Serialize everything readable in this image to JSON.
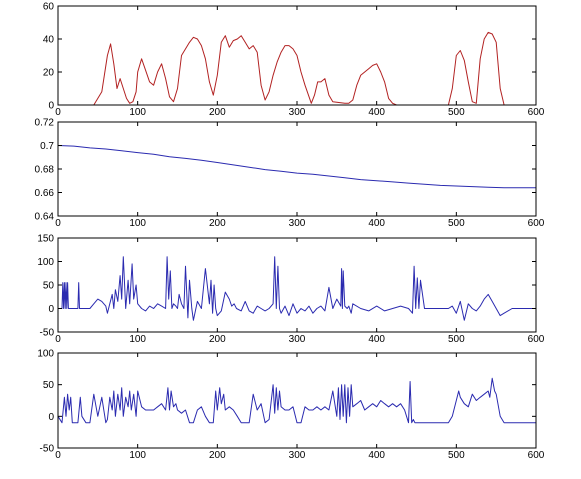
{
  "chart_data": [
    {
      "type": "line",
      "title": "",
      "xlabel": "",
      "ylabel": "",
      "xlim": [
        0,
        600
      ],
      "ylim": [
        0,
        60
      ],
      "xticks": [
        0,
        100,
        200,
        300,
        400,
        500,
        600
      ],
      "yticks": [
        0,
        20,
        40,
        60
      ],
      "grid": false,
      "color": "#b22222",
      "series": [
        {
          "x": [
            0,
            30,
            45,
            55,
            62,
            66,
            70,
            74,
            78,
            82,
            86,
            90,
            94,
            98,
            100,
            105,
            110,
            115,
            120,
            125,
            130,
            135,
            140,
            145,
            150,
            155,
            160,
            165,
            170,
            175,
            180,
            185,
            190,
            195,
            200,
            205,
            210,
            215,
            220,
            225,
            230,
            235,
            240,
            245,
            250,
            255,
            260,
            265,
            270,
            275,
            280,
            285,
            290,
            295,
            300,
            305,
            310,
            318,
            322,
            326,
            330,
            335,
            340,
            345,
            360,
            365,
            370,
            375,
            380,
            385,
            390,
            395,
            400,
            405,
            410,
            415,
            420,
            425,
            430,
            440,
            450,
            470,
            490,
            495,
            500,
            505,
            510,
            515,
            520,
            525,
            530,
            535,
            540,
            545,
            550,
            555,
            560,
            570,
            580,
            600
          ],
          "y": [
            0,
            0,
            0,
            8,
            30,
            37,
            25,
            10,
            16,
            10,
            4,
            1,
            2,
            8,
            20,
            28,
            21,
            14,
            12,
            20,
            25,
            16,
            5,
            2,
            10,
            30,
            34,
            38,
            41,
            40,
            36,
            28,
            14,
            6,
            18,
            38,
            42,
            35,
            39,
            40,
            42,
            38,
            34,
            36,
            32,
            12,
            3,
            8,
            18,
            26,
            32,
            36,
            36,
            34,
            30,
            20,
            12,
            1,
            6,
            14,
            14,
            16,
            6,
            2,
            1,
            1,
            3,
            12,
            18,
            20,
            22,
            24,
            25,
            20,
            14,
            4,
            1,
            0,
            0,
            0,
            0,
            0,
            0,
            10,
            30,
            33,
            27,
            14,
            2,
            1,
            28,
            40,
            44,
            43,
            38,
            10,
            0,
            0,
            0,
            0
          ]
        }
      ]
    },
    {
      "type": "line",
      "title": "",
      "xlabel": "",
      "ylabel": "",
      "xlim": [
        0,
        600
      ],
      "ylim": [
        0.64,
        0.72
      ],
      "xticks": [
        0,
        100,
        200,
        300,
        400,
        500,
        600
      ],
      "yticks": [
        0.64,
        0.66,
        0.68,
        0.7,
        0.72
      ],
      "grid": false,
      "color": "#2b2bb0",
      "series": [
        {
          "x": [
            0,
            20,
            40,
            60,
            80,
            100,
            120,
            140,
            160,
            180,
            200,
            220,
            240,
            260,
            280,
            300,
            320,
            340,
            360,
            380,
            400,
            420,
            440,
            460,
            480,
            500,
            520,
            540,
            560,
            580,
            600
          ],
          "y": [
            0.7,
            0.6995,
            0.698,
            0.697,
            0.6955,
            0.694,
            0.6925,
            0.6905,
            0.689,
            0.6875,
            0.6855,
            0.6835,
            0.6815,
            0.6795,
            0.678,
            0.6765,
            0.6755,
            0.674,
            0.6725,
            0.671,
            0.67,
            0.669,
            0.668,
            0.667,
            0.666,
            0.6655,
            0.665,
            0.6645,
            0.664,
            0.664,
            0.664
          ]
        }
      ]
    },
    {
      "type": "line",
      "title": "",
      "xlabel": "",
      "ylabel": "",
      "xlim": [
        0,
        600
      ],
      "ylim": [
        -50,
        150
      ],
      "xticks": [
        0,
        100,
        200,
        300,
        400,
        500,
        600
      ],
      "yticks": [
        -50,
        0,
        50,
        100,
        150
      ],
      "grid": false,
      "color": "#2b2bb0",
      "series": [
        {
          "x": [
            0,
            5,
            6,
            7,
            8,
            9,
            10,
            11,
            12,
            13,
            25,
            26,
            27,
            40,
            45,
            50,
            55,
            60,
            62,
            65,
            68,
            70,
            72,
            75,
            78,
            80,
            82,
            85,
            88,
            90,
            93,
            95,
            98,
            100,
            105,
            110,
            115,
            120,
            125,
            130,
            135,
            137,
            139,
            141,
            143,
            145,
            148,
            150,
            152,
            155,
            158,
            160,
            163,
            165,
            168,
            170,
            175,
            180,
            185,
            190,
            192,
            194,
            196,
            198,
            200,
            205,
            210,
            215,
            218,
            221,
            224,
            230,
            235,
            240,
            245,
            250,
            255,
            260,
            265,
            270,
            272,
            274,
            276,
            278,
            280,
            285,
            290,
            295,
            300,
            305,
            310,
            315,
            320,
            325,
            330,
            335,
            340,
            345,
            350,
            355,
            356,
            357,
            358,
            360,
            363,
            365,
            368,
            370,
            380,
            390,
            400,
            410,
            420,
            430,
            440,
            445,
            447,
            449,
            451,
            453,
            455,
            460,
            465,
            490,
            495,
            500,
            505,
            510,
            515,
            520,
            525,
            530,
            535,
            540,
            545,
            550,
            555,
            560,
            570,
            580,
            600
          ],
          "y": [
            0,
            0,
            55,
            0,
            55,
            0,
            55,
            0,
            55,
            0,
            0,
            55,
            0,
            0,
            10,
            20,
            15,
            5,
            -10,
            10,
            30,
            0,
            40,
            15,
            70,
            20,
            110,
            0,
            60,
            10,
            95,
            20,
            50,
            10,
            0,
            -5,
            5,
            0,
            10,
            5,
            0,
            110,
            20,
            80,
            0,
            10,
            5,
            0,
            30,
            10,
            0,
            90,
            -20,
            60,
            0,
            -25,
            15,
            0,
            85,
            10,
            60,
            -10,
            50,
            0,
            -15,
            -5,
            35,
            20,
            5,
            10,
            0,
            -5,
            15,
            -5,
            -10,
            5,
            0,
            -5,
            0,
            10,
            110,
            0,
            90,
            0,
            -10,
            5,
            -15,
            10,
            -10,
            0,
            -5,
            5,
            -10,
            0,
            5,
            -5,
            45,
            0,
            20,
            5,
            85,
            0,
            80,
            5,
            0,
            5,
            -10,
            10,
            0,
            -5,
            5,
            -5,
            0,
            5,
            0,
            -10,
            90,
            0,
            65,
            0,
            60,
            0,
            0,
            0,
            5,
            -10,
            15,
            -25,
            10,
            0,
            -5,
            5,
            20,
            30,
            15,
            0,
            -15,
            -10,
            0,
            0,
            0
          ]
        }
      ]
    },
    {
      "type": "line",
      "title": "",
      "xlabel": "",
      "ylabel": "",
      "xlim": [
        0,
        600
      ],
      "ylim": [
        -50,
        100
      ],
      "xticks": [
        0,
        100,
        200,
        300,
        400,
        500,
        600
      ],
      "yticks": [
        -50,
        0,
        50,
        100
      ],
      "grid": false,
      "color": "#2b2bb0",
      "series": [
        {
          "x": [
            0,
            5,
            8,
            10,
            12,
            14,
            16,
            18,
            25,
            28,
            30,
            35,
            38,
            40,
            45,
            50,
            55,
            60,
            62,
            65,
            68,
            70,
            72,
            75,
            78,
            80,
            82,
            85,
            88,
            90,
            92,
            95,
            98,
            100,
            105,
            110,
            115,
            120,
            125,
            130,
            135,
            138,
            140,
            142,
            145,
            148,
            150,
            155,
            160,
            165,
            170,
            175,
            180,
            185,
            190,
            195,
            198,
            200,
            203,
            205,
            208,
            210,
            215,
            220,
            225,
            230,
            235,
            240,
            245,
            250,
            255,
            260,
            265,
            270,
            272,
            274,
            276,
            278,
            280,
            285,
            290,
            295,
            300,
            305,
            310,
            315,
            320,
            325,
            330,
            335,
            340,
            345,
            350,
            352,
            354,
            356,
            358,
            360,
            362,
            364,
            366,
            368,
            370,
            375,
            380,
            385,
            390,
            395,
            400,
            405,
            410,
            415,
            420,
            425,
            430,
            435,
            440,
            442,
            444,
            446,
            448,
            450,
            455,
            460,
            470,
            480,
            490,
            495,
            500,
            503,
            505,
            510,
            515,
            520,
            525,
            530,
            535,
            540,
            542,
            545,
            548,
            550,
            555,
            560,
            570,
            580,
            600
          ],
          "y": [
            0,
            -10,
            30,
            0,
            35,
            10,
            30,
            -10,
            -10,
            30,
            0,
            -10,
            -10,
            -10,
            35,
            0,
            30,
            -10,
            -5,
            30,
            10,
            40,
            0,
            35,
            10,
            45,
            0,
            30,
            15,
            40,
            10,
            35,
            0,
            40,
            15,
            10,
            10,
            10,
            15,
            20,
            10,
            45,
            10,
            40,
            15,
            20,
            10,
            5,
            10,
            -10,
            -10,
            10,
            15,
            0,
            -10,
            -10,
            40,
            10,
            45,
            20,
            35,
            10,
            15,
            10,
            0,
            -10,
            -10,
            -10,
            35,
            10,
            20,
            -10,
            -5,
            50,
            5,
            45,
            10,
            40,
            15,
            10,
            10,
            15,
            -10,
            -10,
            15,
            10,
            10,
            15,
            10,
            15,
            10,
            40,
            0,
            45,
            -5,
            50,
            0,
            50,
            -10,
            45,
            0,
            50,
            15,
            20,
            25,
            10,
            15,
            20,
            15,
            25,
            20,
            15,
            20,
            15,
            20,
            10,
            -10,
            55,
            -10,
            -5,
            -10,
            -10,
            -10,
            -10,
            -10,
            -10,
            -10,
            0,
            25,
            40,
            30,
            20,
            15,
            35,
            25,
            30,
            35,
            40,
            30,
            60,
            40,
            35,
            0,
            -10,
            -10,
            -10,
            -10
          ]
        }
      ]
    }
  ]
}
